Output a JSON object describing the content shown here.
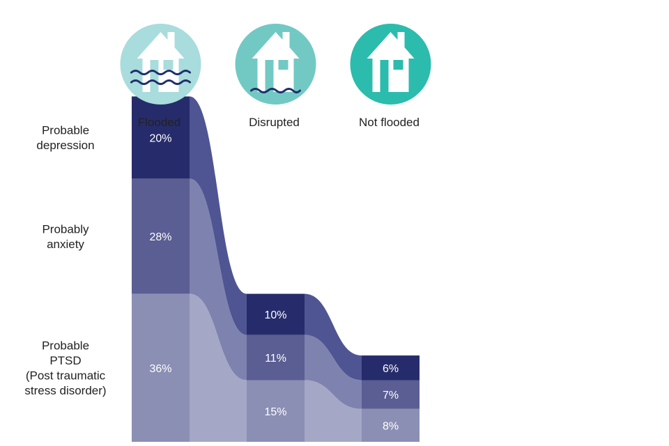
{
  "chart_data": {
    "type": "bar",
    "categories": [
      "Flooded",
      "Disrupted",
      "Not flooded"
    ],
    "series": [
      {
        "name": "Probable depression",
        "label_lines": [
          "Probable",
          "depression"
        ],
        "values": [
          20,
          10,
          6
        ],
        "display": [
          "20%",
          "10%",
          "6%"
        ],
        "color": "#262c6b"
      },
      {
        "name": "Probably anxiety",
        "label_lines": [
          "Probably",
          "anxiety"
        ],
        "values": [
          28,
          11,
          7
        ],
        "display": [
          "28%",
          "11%",
          "7%"
        ],
        "color": "#5a5e93"
      },
      {
        "name": "Probable PTSD (Post traumatic stress disorder)",
        "label_lines": [
          "Probable",
          "PTSD",
          "(Post traumatic",
          "stress disorder)"
        ],
        "values": [
          36,
          15,
          8
        ],
        "display": [
          "36%",
          "15%",
          "8%"
        ],
        "color": "#8c8fb4"
      }
    ],
    "stacked": true,
    "connector_colors": [
      "#4f5592",
      "#7e82ae",
      "#a4a7c5"
    ],
    "icons": [
      {
        "name": "flooded-house-icon",
        "circle_color": "#a9dcdc",
        "waves": 2
      },
      {
        "name": "disrupted-house-icon",
        "circle_color": "#72c9c4",
        "waves": 1
      },
      {
        "name": "not-flooded-house-icon",
        "circle_color": "#2bbcad",
        "waves": 0
      }
    ],
    "wave_color": "#1f2f6b"
  }
}
